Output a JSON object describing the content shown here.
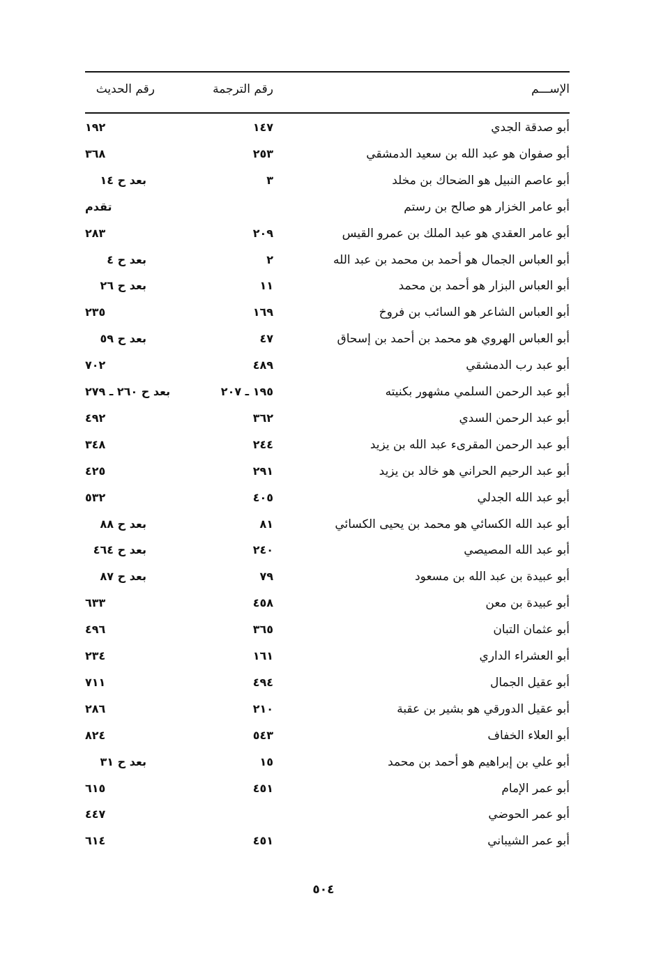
{
  "headers": {
    "name": "الإســـم",
    "translation": "رقم الترجمة",
    "hadith": "رقم الحديث"
  },
  "rows": [
    {
      "name": "أبو صدقة الجدي",
      "translation": "١٤٧",
      "hadith": "١٩٢"
    },
    {
      "name": "أبو صفوان هو عبد الله بن سعيد الدمشقي",
      "translation": "٢٥٣",
      "hadith": "٣٦٨"
    },
    {
      "name": "أبو عاصم النبيل هو الضحاك بن مخلد",
      "translation": "٣",
      "hadith": "بعد ح ١٤"
    },
    {
      "name": "أبو عامر الخزار هو صالح بن رستم",
      "translation": "",
      "hadith": "تقدم"
    },
    {
      "name": "أبو عامر العقدي هو عبد الملك بن عمرو القيس",
      "translation": "٢٠٩",
      "hadith": "٢٨٣"
    },
    {
      "name": "أبو العباس الجمال هو أحمد بن محمد بن عبد الله",
      "translation": "٢",
      "hadith": "بعد ح ٤"
    },
    {
      "name": "أبو العباس البزار هو أحمد بن محمد",
      "translation": "١١",
      "hadith": "بعد ح ٢٦"
    },
    {
      "name": "أبو العباس الشاعر هو السائب بن فروخ",
      "translation": "١٦٩",
      "hadith": "٢٣٥"
    },
    {
      "name": "أبو العباس الهروي هو محمد بن أحمد بن إسحاق",
      "translation": "٤٧",
      "hadith": "بعد ح ٥٩"
    },
    {
      "name": "أبو عبد رب الدمشقي",
      "translation": "٤٨٩",
      "hadith": "٧٠٢"
    },
    {
      "name": "أبو عبد الرحمن السلمي مشهور بكنيته",
      "translation": "١٩٥ ـ ٢٠٧",
      "hadith": "بعد ح ٢٦٠ ـ ٢٧٩"
    },
    {
      "name": "أبو عبد الرحمن السدي",
      "translation": "٣٦٢",
      "hadith": "٤٩٢"
    },
    {
      "name": "أبو عبد الرحمن المقرىء عبد الله بن يزيد",
      "translation": "٢٤٤",
      "hadith": "٣٤٨"
    },
    {
      "name": "أبو عبد الرحيم الحراني هو خالد بن يزيد",
      "translation": "٢٩١",
      "hadith": "٤٢٥"
    },
    {
      "name": "أبو عبد الله الجدلي",
      "translation": "٤٠٥",
      "hadith": "٥٣٢"
    },
    {
      "name": "أبو عبد الله الكسائي هو محمد بن يحيى الكسائي",
      "translation": "٨١",
      "hadith": "بعد ح ٨٨"
    },
    {
      "name": "أبو عبد الله المصيصي",
      "translation": "٢٤٠",
      "hadith": "بعد ح ٤٦٤"
    },
    {
      "name": "أبو عبيدة بن عبد الله بن مسعود",
      "translation": "٧٩",
      "hadith": "بعد ح ٨٧"
    },
    {
      "name": "أبو عبيدة بن معن",
      "translation": "٤٥٨",
      "hadith": "٦٣٣"
    },
    {
      "name": "أبو عثمان التبان",
      "translation": "٣٦٥",
      "hadith": "٤٩٦"
    },
    {
      "name": "أبو العشراء الداري",
      "translation": "١٦١",
      "hadith": "٢٣٤"
    },
    {
      "name": "أبو عقيل الجمال",
      "translation": "٤٩٤",
      "hadith": "٧١١"
    },
    {
      "name": "أبو عقيل الدورقي هو بشير بن عقبة",
      "translation": "٢١٠",
      "hadith": "٢٨٦"
    },
    {
      "name": "أبو العلاء الخفاف",
      "translation": "٥٤٣",
      "hadith": "٨٢٤"
    },
    {
      "name": "أبو علي بن إبراهيم هو أحمد بن محمد",
      "translation": "١٥",
      "hadith": "بعد ح ٣١"
    },
    {
      "name": "أبو عمر الإمام",
      "translation": "٤٥١",
      "hadith": "٦١٥"
    },
    {
      "name": "أبو عمر الحوضي",
      "translation": "",
      "hadith": "٤٤٧"
    },
    {
      "name": "أبو عمر الشيباني",
      "translation": "٤٥١",
      "hadith": "٦١٤"
    }
  ],
  "page_number": "٥٠٤"
}
